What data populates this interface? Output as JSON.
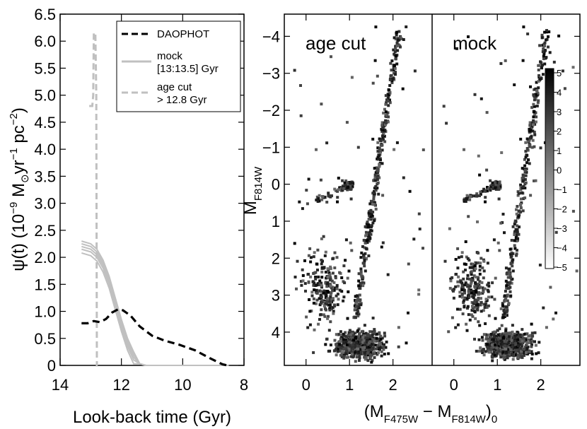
{
  "chart_data": [
    {
      "type": "line",
      "xlabel": "Look-back time (Gyr)",
      "ylabel_prefix": "ψ(t) (10",
      "ylabel_exp1": "−9",
      "ylabel_mid": " M",
      "ylabel_sun": "⊙",
      "ylabel_mid2": "yr",
      "ylabel_exp2": "−1",
      "ylabel_mid3": " pc",
      "ylabel_exp3": "−2",
      "ylabel_suffix": ")",
      "xlim": [
        14,
        8
      ],
      "ylim": [
        0,
        6.5
      ],
      "x_ticks": [
        "14",
        "12",
        "10",
        "8"
      ],
      "y_ticks": [
        "0",
        "0.5",
        "1.0",
        "1.5",
        "2.0",
        "2.5",
        "3.0",
        "3.5",
        "4.0",
        "4.5",
        "5.0",
        "5.5",
        "6.0",
        "6.5"
      ],
      "legend_position": "top-right",
      "series": [
        {
          "name": "DAOPHOT",
          "style": "dashed",
          "color": "#000000",
          "x": [
            13.3,
            13.1,
            12.9,
            12.7,
            12.5,
            12.3,
            12.1,
            11.95,
            11.7,
            11.4,
            11.0,
            10.6,
            10.1,
            9.6,
            9.1,
            8.7,
            8.55
          ],
          "y": [
            0.78,
            0.78,
            0.82,
            0.8,
            0.86,
            0.98,
            1.04,
            1.02,
            0.92,
            0.72,
            0.55,
            0.46,
            0.38,
            0.28,
            0.13,
            0.02,
            0.0
          ]
        },
        {
          "name": "mock",
          "name_line2": "[13:13.5] Gyr",
          "style": "solid",
          "color": "#c0c0c0",
          "x": [
            13.3,
            13.0,
            12.8,
            12.6,
            12.4,
            12.2,
            12.0,
            11.8,
            11.6,
            11.4,
            11.2,
            8.5
          ],
          "y": [
            2.2,
            2.15,
            2.05,
            1.85,
            1.55,
            1.15,
            0.75,
            0.4,
            0.15,
            0.03,
            0.0,
            0.0
          ]
        },
        {
          "name": "age cut",
          "name_line2": "> 12.8 Gyr",
          "style": "dashed",
          "color": "#c0c0c0",
          "x": [
            13.05,
            12.95,
            12.92,
            12.9,
            12.85,
            12.82,
            12.8,
            12.78
          ],
          "y": [
            4.8,
            4.8,
            5.0,
            6.15,
            6.15,
            5.0,
            0.0,
            0.0
          ]
        }
      ]
    },
    {
      "type": "heatmap",
      "panel_labels": [
        "age cut",
        "mock"
      ],
      "ylabel": "M",
      "ylabel_sub": "F814W",
      "xlabel": "(M",
      "xlabel_sub1": "F475W",
      "xlabel_mid": " − M",
      "xlabel_sub2": "F814W",
      "xlabel_end": ")",
      "xlabel_sub3": "0",
      "xlim": [
        -0.5,
        2.9
      ],
      "ylim": [
        4.9,
        -4.6
      ],
      "x_ticks": [
        "0",
        "1",
        "2"
      ],
      "y_ticks": [
        "−4",
        "−3",
        "−2",
        "−1",
        "0",
        "1",
        "2",
        "3",
        "4"
      ],
      "colorbar_ticks": [
        "5",
        "4",
        "3",
        "2",
        "1",
        "0",
        "−1",
        "−2",
        "−3",
        "−4",
        "−5"
      ],
      "colorbar_range": [
        -5,
        5
      ]
    }
  ]
}
